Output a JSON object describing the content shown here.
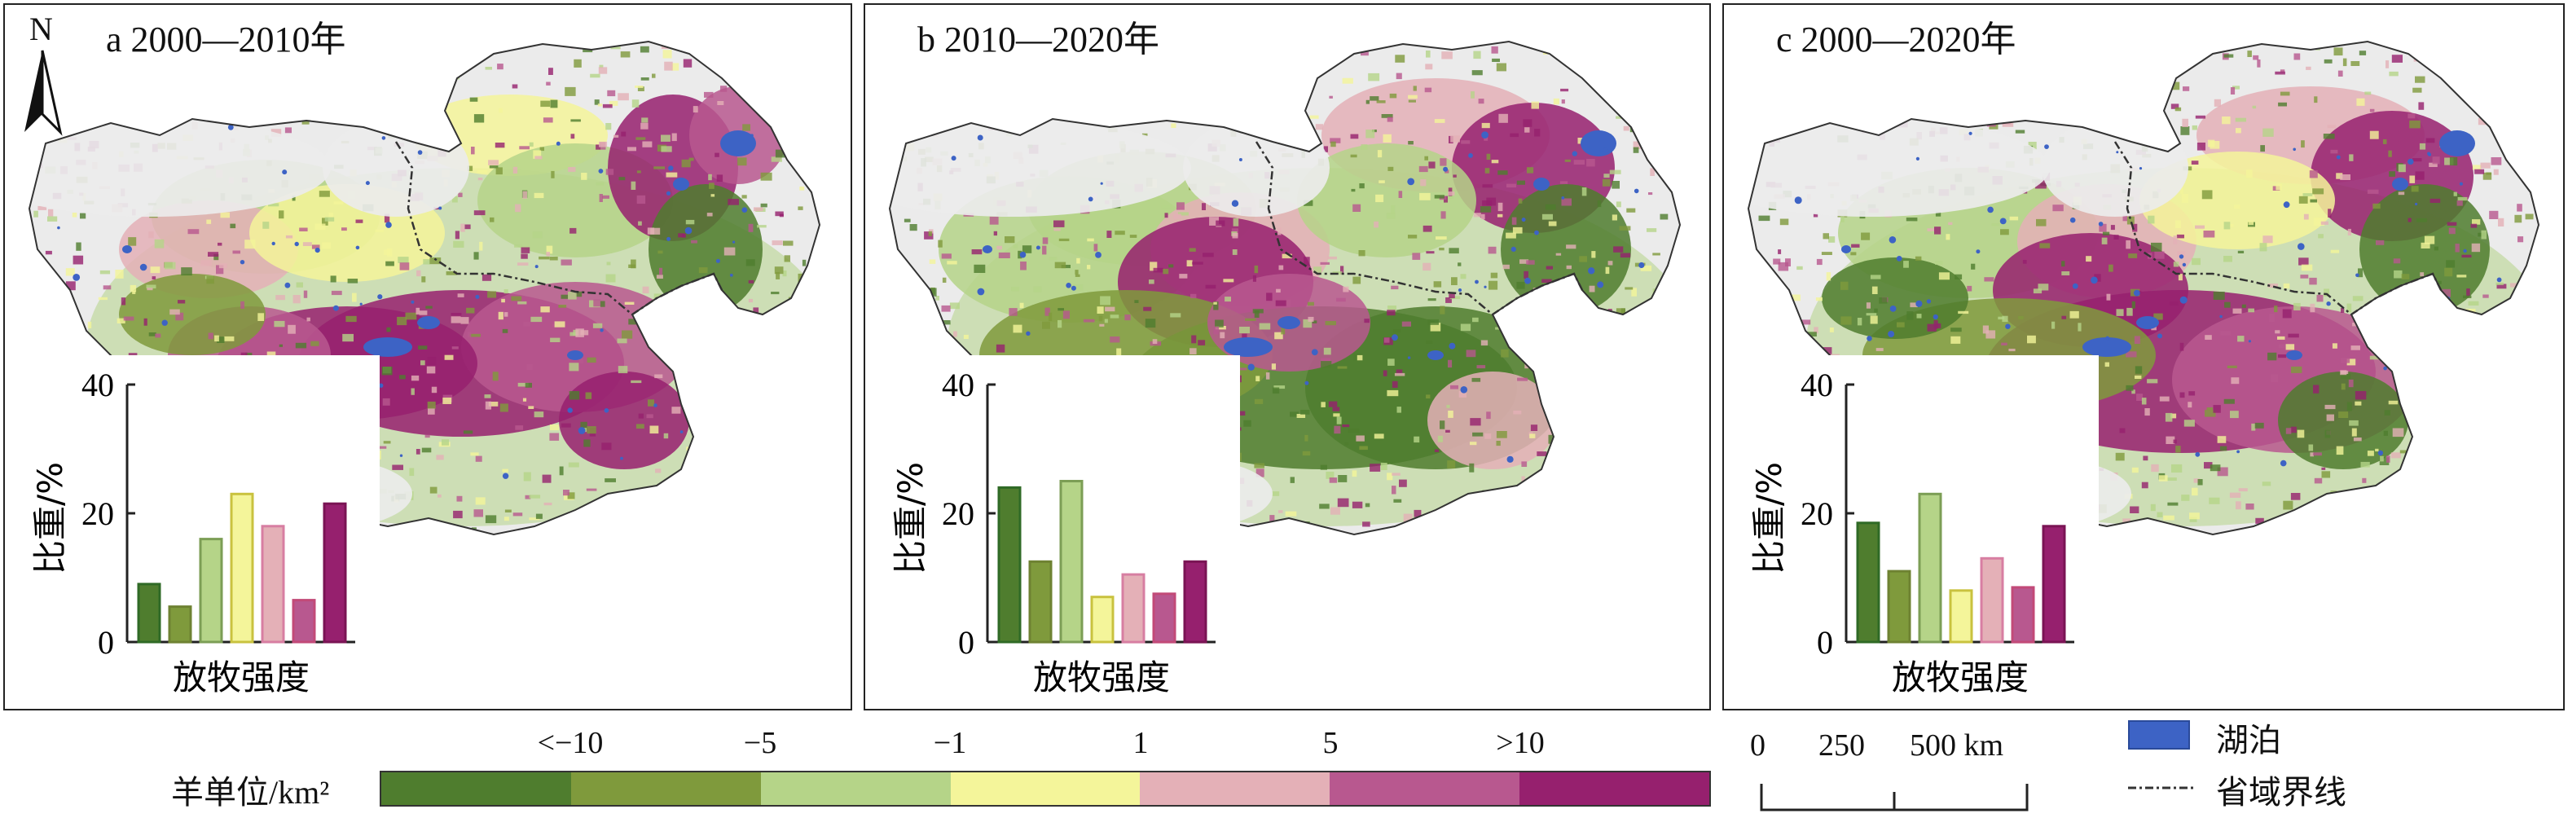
{
  "panels": [
    {
      "id": "a",
      "title": "a 2000—2010年",
      "hist": [
        9,
        5.5,
        16,
        23,
        18,
        6.5,
        21.5
      ]
    },
    {
      "id": "b",
      "title": "b 2010—2020年",
      "hist": [
        24,
        12.5,
        25,
        7,
        10.5,
        7.5,
        12.5
      ]
    },
    {
      "id": "c",
      "title": "c 2000—2020年",
      "hist": [
        18.5,
        11,
        23,
        8,
        13,
        8.5,
        18
      ]
    }
  ],
  "histogram": {
    "ylabel": "比重/%",
    "xlabel": "放牧强度",
    "yticks": [
      "0",
      "20",
      "40"
    ],
    "ymax": 40
  },
  "north_label": "N",
  "legend": {
    "title": "羊单位/km²",
    "ticks": [
      "<−10",
      "−5",
      "−1",
      "1",
      "5",
      ">10"
    ],
    "colors": [
      "#4f7d2e",
      "#7f9a3c",
      "#b5d488",
      "#f4f59a",
      "#e4b0b7",
      "#b8588f",
      "#96206e"
    ],
    "bar_edge_colors": [
      "#2f6a26",
      "#6e8232",
      "#7c9e55",
      "#c9c23f",
      "#d77ea2",
      "#c24a78",
      "#7a1454"
    ],
    "lake_color": "#3d63c5",
    "lake_label": "湖泊",
    "boundary_label": "省域界线"
  },
  "scale_bar": {
    "labels": [
      "0",
      "250",
      "500 km"
    ]
  }
}
